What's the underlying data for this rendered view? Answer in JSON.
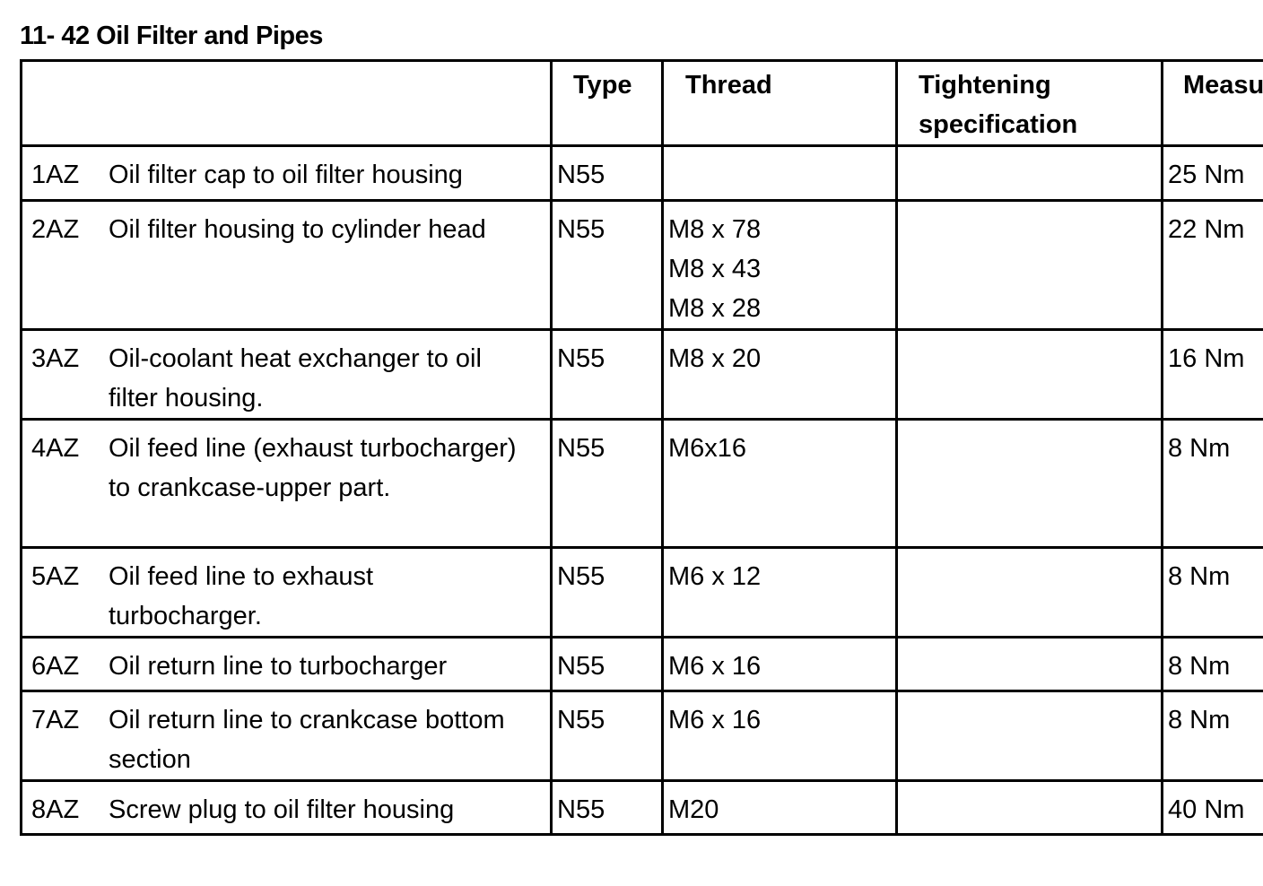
{
  "title": "11- 42 Oil Filter and Pipes",
  "headers": {
    "item": "",
    "type": "Type",
    "thread": "Thread",
    "tightening": "Tightening specification",
    "measure": "Measure"
  },
  "rows": [
    {
      "id": "1AZ",
      "description": "Oil filter cap to oil filter housing",
      "type": "N55",
      "thread": [],
      "tightening": "",
      "measure": "25 Nm"
    },
    {
      "id": "2AZ",
      "description": "Oil filter housing to cylinder head",
      "type": "N55",
      "thread": [
        "M8 x 78",
        "M8 x 43",
        "M8 x 28"
      ],
      "tightening": "",
      "measure": "22 Nm"
    },
    {
      "id": "3AZ",
      "description": "Oil-coolant heat exchanger to oil filter housing.",
      "type": "N55",
      "thread": [
        "M8 x 20"
      ],
      "tightening": "",
      "measure": "16 Nm"
    },
    {
      "id": "4AZ",
      "description": "Oil feed line (exhaust turbocharger) to crankcase-upper part.",
      "type": "N55",
      "thread": [
        "M6x16"
      ],
      "tightening": "",
      "measure": "8 Nm"
    },
    {
      "id": "5AZ",
      "description": "Oil feed line to exhaust turbocharger.",
      "type": "N55",
      "thread": [
        "M6 x 12"
      ],
      "tightening": "",
      "measure": "8 Nm"
    },
    {
      "id": "6AZ",
      "description": "Oil return line to turbocharger",
      "type": "N55",
      "thread": [
        "M6 x 16"
      ],
      "tightening": "",
      "measure": "8 Nm"
    },
    {
      "id": "7AZ",
      "description": "Oil return line to crankcase bottom section",
      "type": "N55",
      "thread": [
        "M6 x 16"
      ],
      "tightening": "",
      "measure": "8 Nm"
    },
    {
      "id": "8AZ",
      "description": "Screw plug to oil filter housing",
      "type": "N55",
      "thread": [
        "M20"
      ],
      "tightening": "",
      "measure": "40 Nm"
    }
  ]
}
